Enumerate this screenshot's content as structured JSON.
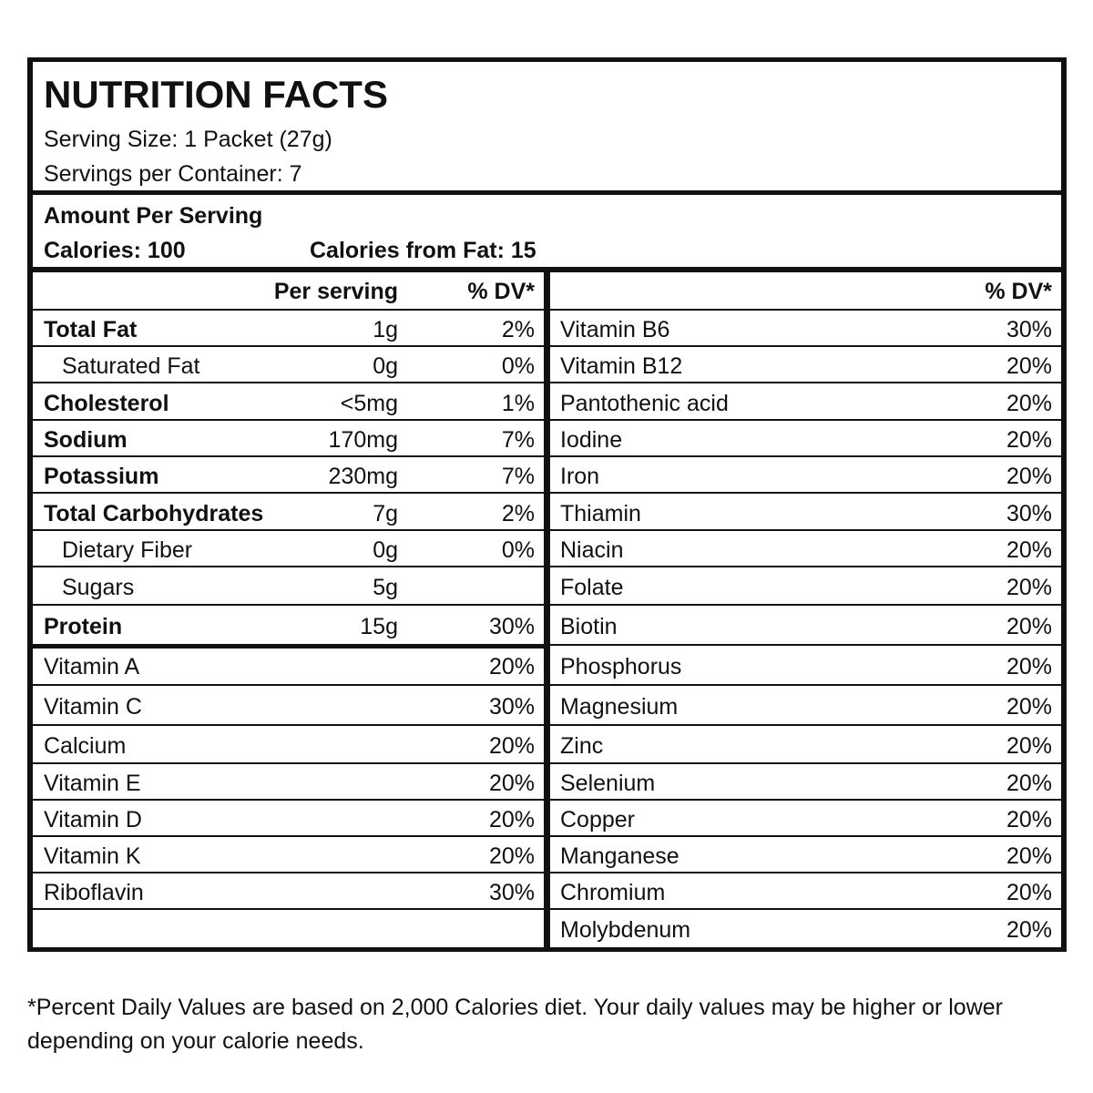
{
  "header": {
    "title": "NUTRITION FACTS",
    "serving_size": "Serving Size: 1 Packet (27g)",
    "servings_per_container": "Servings per Container: 7"
  },
  "amount": {
    "label": "Amount Per Serving",
    "calories": "Calories: 100",
    "calories_from_fat": "Calories from Fat: 15"
  },
  "left_table": {
    "columns": {
      "per_serving": "Per serving",
      "dv": "% DV*"
    },
    "rows": [
      {
        "name": "Total Fat",
        "amount": "1g",
        "dv": "2%",
        "bold": true,
        "indent": false
      },
      {
        "name": "Saturated Fat",
        "amount": "0g",
        "dv": "0%",
        "bold": false,
        "indent": true
      },
      {
        "name": "Cholesterol",
        "amount": "<5mg",
        "dv": "1%",
        "bold": true,
        "indent": false
      },
      {
        "name": "Sodium",
        "amount": "170mg",
        "dv": "7%",
        "bold": true,
        "indent": false
      },
      {
        "name": "Potassium",
        "amount": "230mg",
        "dv": "7%",
        "bold": true,
        "indent": false
      },
      {
        "name": "Total Carbohydrates",
        "amount": "7g",
        "dv": "2%",
        "bold": true,
        "indent": false
      },
      {
        "name": "Dietary Fiber",
        "amount": "0g",
        "dv": "0%",
        "bold": false,
        "indent": true
      },
      {
        "name": "Sugars",
        "amount": "5g",
        "dv": null,
        "bold": false,
        "indent": true
      },
      {
        "name": "Protein",
        "amount": "15g",
        "dv": "30%",
        "bold": true,
        "indent": false
      }
    ],
    "vitamins": [
      {
        "name": "Vitamin A",
        "dv": "20%"
      },
      {
        "name": "Vitamin C",
        "dv": "30%"
      },
      {
        "name": "Calcium",
        "dv": "20%"
      },
      {
        "name": "Vitamin E",
        "dv": "20%"
      },
      {
        "name": "Vitamin D",
        "dv": "20%"
      },
      {
        "name": "Vitamin K",
        "dv": "20%"
      },
      {
        "name": "Riboflavin",
        "dv": "30%"
      }
    ]
  },
  "right_table": {
    "columns": {
      "dv": "% DV*"
    },
    "rows": [
      {
        "name": "Vitamin B6",
        "dv": "30%"
      },
      {
        "name": "Vitamin B12",
        "dv": "20%"
      },
      {
        "name": "Pantothenic acid",
        "dv": "20%"
      },
      {
        "name": "Iodine",
        "dv": "20%"
      },
      {
        "name": "Iron",
        "dv": "20%"
      },
      {
        "name": "Thiamin",
        "dv": "30%"
      },
      {
        "name": "Niacin",
        "dv": "20%"
      },
      {
        "name": "Folate",
        "dv": "20%"
      },
      {
        "name": "Biotin",
        "dv": "20%"
      },
      {
        "name": "Phosphorus",
        "dv": "20%"
      },
      {
        "name": "Magnesium",
        "dv": "20%"
      },
      {
        "name": "Zinc",
        "dv": "20%"
      },
      {
        "name": "Selenium",
        "dv": "20%"
      },
      {
        "name": "Copper",
        "dv": "20%"
      },
      {
        "name": "Manganese",
        "dv": "20%"
      },
      {
        "name": "Chromium",
        "dv": "20%"
      },
      {
        "name": "Molybdenum",
        "dv": "20%"
      }
    ]
  },
  "footnote": "*Percent Daily Values are based on 2,000 Calories diet. Your daily values may be higher or lower depending on your calorie needs."
}
